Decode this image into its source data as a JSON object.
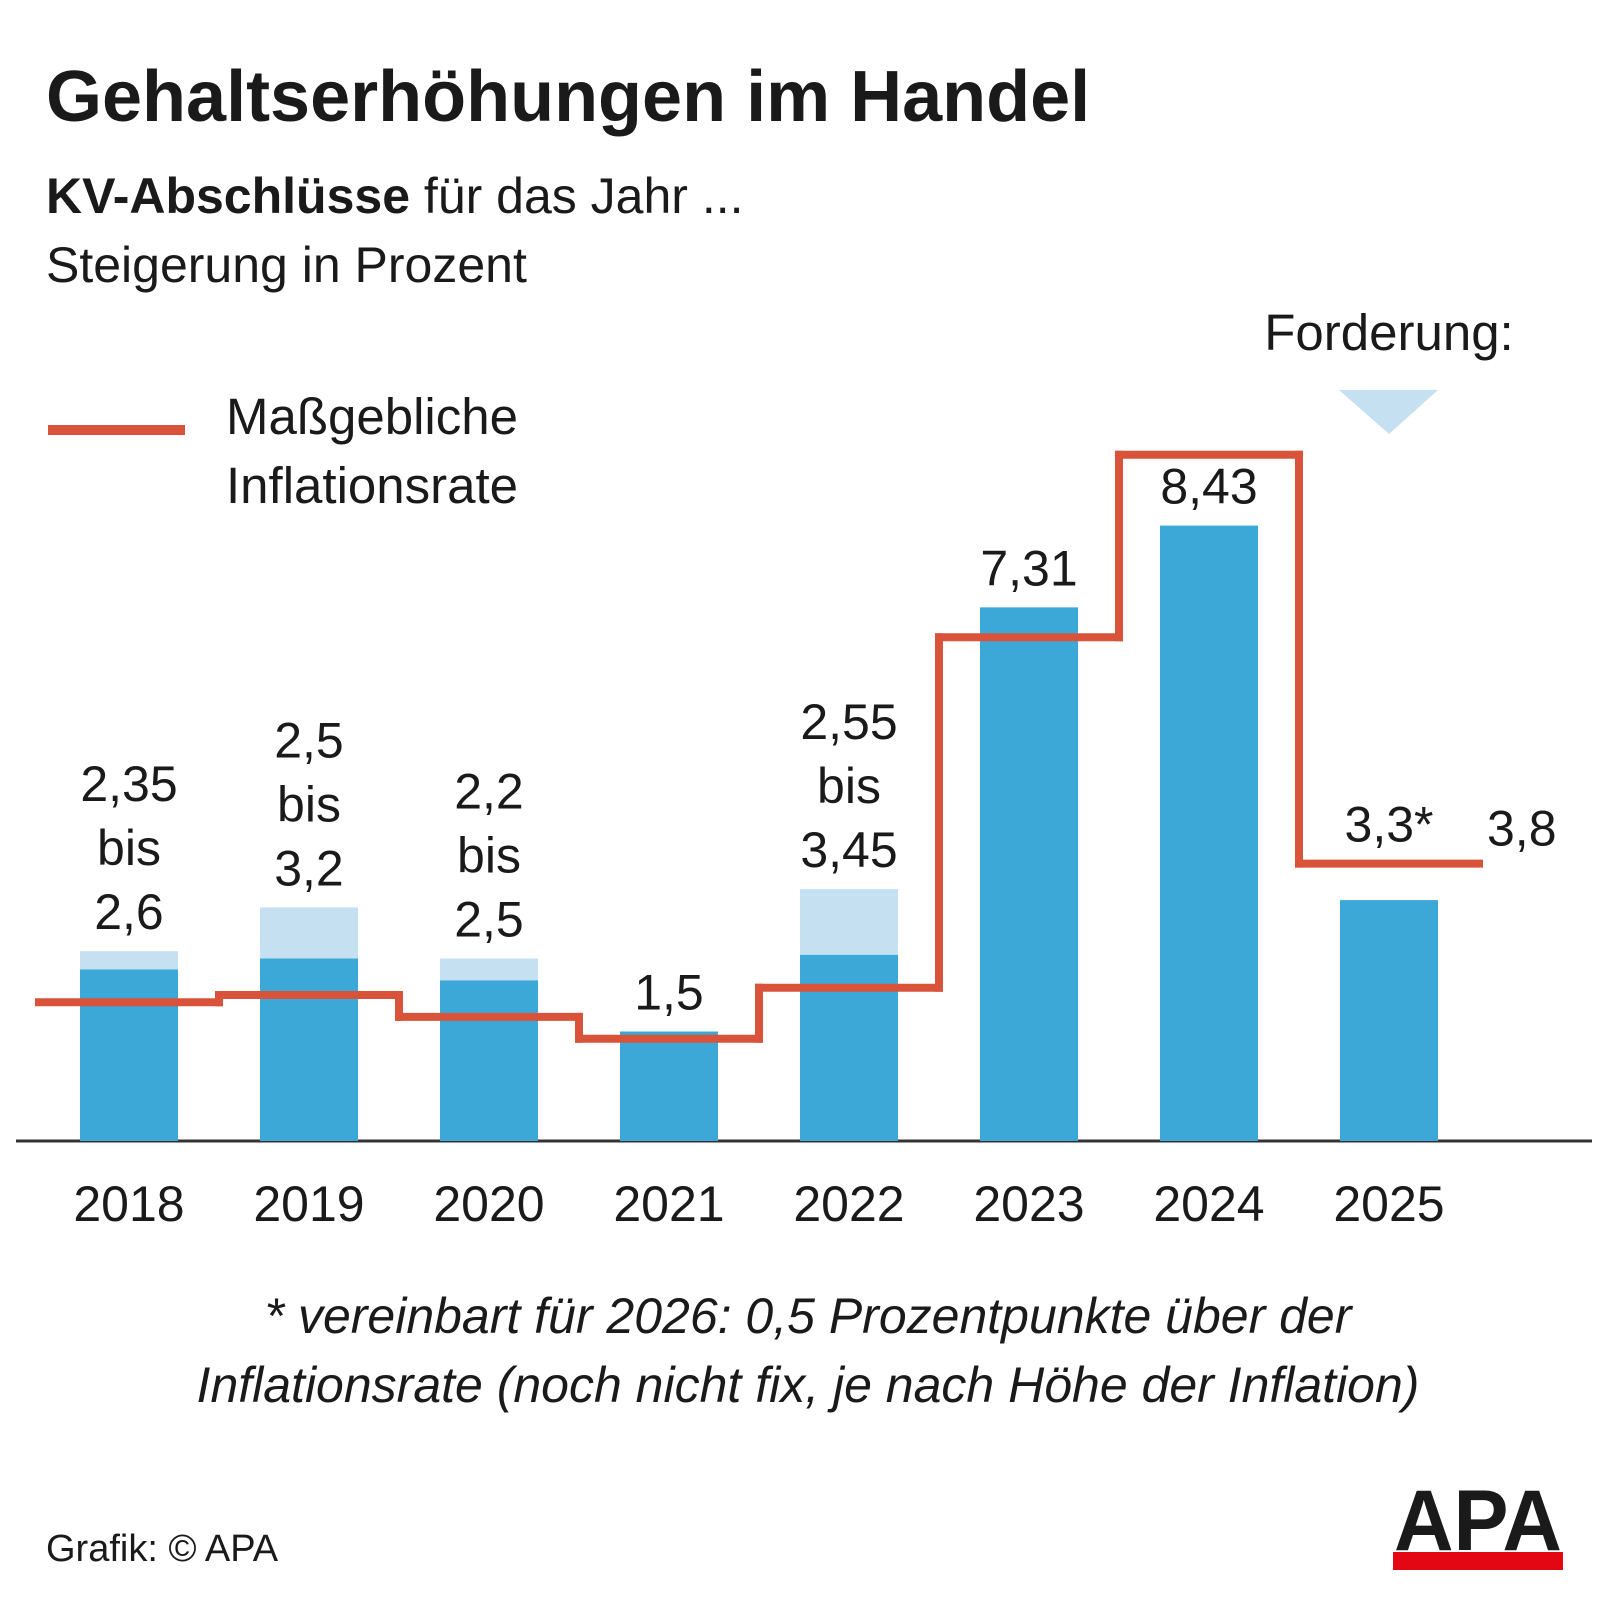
{
  "chart_data": {
    "type": "range_bar_step",
    "title": "Gehaltserhöhungen im Handel",
    "subtitle_bold": "KV-Abschlüsse",
    "subtitle_rest": "für das Jahr ...",
    "subtitle2": "Steigerung in Prozent",
    "annotation": "Forderung:",
    "categories": [
      "2018",
      "2019",
      "2020",
      "2021",
      "2022",
      "2023",
      "2024",
      "2025"
    ],
    "ylim": [
      0,
      10
    ],
    "bars": {
      "color": "#3ba8d8",
      "range_color": "#c5e0f1",
      "values": [
        2.35,
        2.5,
        2.2,
        1.5,
        2.55,
        7.31,
        8.43,
        3.3
      ],
      "value_labels": [
        "2,35",
        "2,5",
        "2,2",
        "1,5",
        "2,55",
        "7,31",
        "8,43",
        "3,3*"
      ],
      "high_values": [
        2.6,
        3.2,
        2.5,
        null,
        3.45,
        null,
        null,
        null
      ],
      "high_value_labels": [
        "2,6",
        "3,2",
        "2,5",
        null,
        "3,45",
        null,
        null,
        null
      ]
    },
    "range_word": "bis",
    "line": {
      "name": "Maßgebliche Inflationsrate",
      "color": "#d9533b",
      "values": [
        1.9,
        2.0,
        1.7,
        1.4,
        2.1,
        6.9,
        9.4,
        3.8
      ],
      "value_labels": [
        null,
        null,
        null,
        null,
        null,
        null,
        null,
        "3,8"
      ]
    },
    "footnote": [
      "* vereinbart für 2026: 0,5 Prozentpunkte über der",
      "Inflationsrate (noch nicht fix, je nach Höhe der Inflation)"
    ],
    "source": "Grafik: © APA",
    "logo": "APA"
  }
}
